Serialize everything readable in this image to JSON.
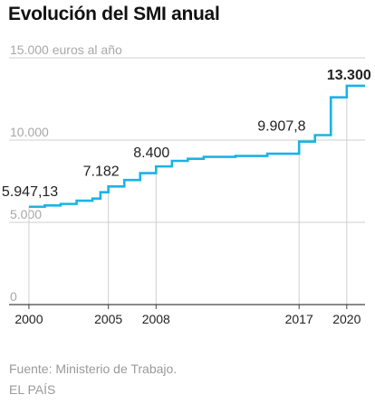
{
  "title": "Evolución del SMI anual",
  "footer": {
    "source": "Fuente: Ministerio de Trabajo.",
    "brand": "EL PAÍS"
  },
  "chart_data": {
    "type": "line",
    "step": true,
    "title": "Evolución del SMI anual",
    "ylabel": "",
    "xlabel": "",
    "xlim": [
      1998.75,
      2021.15
    ],
    "ylim": [
      0,
      15000
    ],
    "grid": true,
    "line_color": "#1cb2e6",
    "x": [
      2000,
      2001,
      2002,
      2003,
      2004,
      2004.5,
      2005,
      2006,
      2007,
      2008,
      2009,
      2010,
      2011,
      2012,
      2013,
      2014,
      2015,
      2016,
      2017,
      2018,
      2019,
      2020,
      2021
    ],
    "y": [
      5947.13,
      6024.16,
      6120.0,
      6316.8,
      6447.6,
      6832.8,
      7182.0,
      7572.6,
      7988.4,
      8400.0,
      8736.0,
      8866.2,
      8979.6,
      8979.6,
      9034.2,
      9034.2,
      9172.8,
      9172.8,
      9907.8,
      10302.6,
      12600.0,
      13300.0,
      13300.0
    ],
    "y_ticks": [
      {
        "value": 0,
        "label": "0"
      },
      {
        "value": 5000,
        "label": "5.000"
      },
      {
        "value": 10000,
        "label": "10.000"
      },
      {
        "value": 15000,
        "label": "15.000 euros al año"
      }
    ],
    "x_ticks": [
      {
        "value": 2000,
        "label": "2000"
      },
      {
        "value": 2005,
        "label": "2005"
      },
      {
        "value": 2008,
        "label": "2008"
      },
      {
        "value": 2017,
        "label": "2017"
      },
      {
        "value": 2020,
        "label": "2020"
      }
    ],
    "annotations": [
      {
        "x": 2000,
        "y": 5947.13,
        "label": "5.947,13",
        "bold": false
      },
      {
        "x": 2005,
        "y": 7182,
        "label": "7.182",
        "bold": false
      },
      {
        "x": 2008,
        "y": 8400,
        "label": "8.400",
        "bold": false
      },
      {
        "x": 2017,
        "y": 9907.8,
        "label": "9.907,8",
        "bold": false
      },
      {
        "x": 2020,
        "y": 13300,
        "label": "13.300",
        "bold": true
      }
    ]
  }
}
